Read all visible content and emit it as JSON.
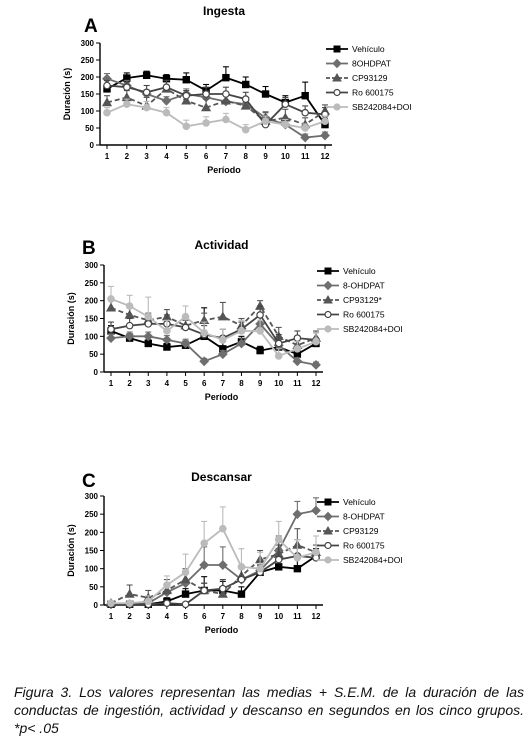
{
  "caption": "Figura 3. Los valores representan las medias + S.E.M. de la duración de las conductas de ingestión, actividad y descanso en segundos en los cinco grupos. *p< .05",
  "chart_data": [
    {
      "type": "line",
      "panel_letter": "A",
      "title": "Ingesta",
      "xlabel": "Período",
      "ylabel": "Duración (s)",
      "ylim": [
        0,
        300
      ],
      "yticks": [
        0,
        50,
        100,
        150,
        200,
        250,
        300
      ],
      "x": [
        1,
        2,
        3,
        4,
        5,
        6,
        7,
        8,
        9,
        10,
        11,
        12
      ],
      "legend_position": "right",
      "series": [
        {
          "name": "Vehículo",
          "marker": "square",
          "color": "#000000",
          "dash": "none",
          "values": [
            165,
            197,
            205,
            195,
            192,
            160,
            198,
            178,
            150,
            125,
            145,
            60
          ],
          "errors": [
            15,
            15,
            12,
            12,
            20,
            18,
            32,
            22,
            22,
            20,
            40,
            18
          ]
        },
        {
          "name": "8OHDPAT",
          "marker": "diamond",
          "color": "#6e6e6e",
          "dash": "none",
          "values": [
            195,
            175,
            150,
            130,
            150,
            140,
            128,
            120,
            80,
            60,
            22,
            28
          ],
          "errors": [
            15,
            15,
            12,
            12,
            15,
            18,
            18,
            15,
            18,
            15,
            10,
            10
          ]
        },
        {
          "name": "CP93129",
          "marker": "triangle",
          "color": "#555555",
          "dash": "dash",
          "values": [
            125,
            140,
            115,
            165,
            130,
            110,
            130,
            115,
            70,
            80,
            60,
            100
          ],
          "errors": [
            20,
            20,
            25,
            25,
            20,
            25,
            20,
            25,
            25,
            25,
            20,
            18
          ]
        },
        {
          "name": "Ro 600175",
          "marker": "circle",
          "color": "#444444",
          "dash": "none",
          "values": [
            175,
            170,
            155,
            170,
            145,
            150,
            150,
            135,
            60,
            120,
            95,
            90
          ],
          "errors": [
            15,
            15,
            20,
            20,
            15,
            20,
            20,
            20,
            15,
            20,
            20,
            20
          ]
        },
        {
          "name": "SB242084+DOI",
          "marker": "circle",
          "color": "#bbbbbb",
          "dash": "none",
          "values": [
            95,
            120,
            110,
            95,
            55,
            65,
            75,
            45,
            70,
            60,
            50,
            70
          ],
          "errors": [
            15,
            15,
            18,
            15,
            18,
            18,
            18,
            15,
            15,
            15,
            12,
            15
          ]
        }
      ]
    },
    {
      "type": "line",
      "panel_letter": "B",
      "title": "Actividad",
      "xlabel": "Período",
      "ylabel": "Duración (s)",
      "ylim": [
        0,
        300
      ],
      "yticks": [
        0,
        50,
        100,
        150,
        200,
        250,
        300
      ],
      "x": [
        1,
        2,
        3,
        4,
        5,
        6,
        7,
        8,
        9,
        10,
        11,
        12
      ],
      "legend_position": "right",
      "series": [
        {
          "name": "Vehículo",
          "marker": "square",
          "color": "#000000",
          "dash": "none",
          "values": [
            115,
            95,
            80,
            70,
            75,
            100,
            65,
            85,
            60,
            70,
            50,
            80
          ],
          "errors": [
            15,
            12,
            10,
            10,
            12,
            80,
            20,
            15,
            12,
            15,
            12,
            15
          ]
        },
        {
          "name": "8-OHDPAT",
          "marker": "diamond",
          "color": "#6e6e6e",
          "dash": "none",
          "values": [
            95,
            100,
            100,
            90,
            80,
            30,
            50,
            80,
            135,
            75,
            30,
            20
          ],
          "errors": [
            12,
            12,
            12,
            12,
            12,
            8,
            10,
            15,
            20,
            15,
            10,
            8
          ]
        },
        {
          "name": "CP93129*",
          "marker": "triangle",
          "color": "#555555",
          "dash": "dash",
          "values": [
            180,
            160,
            145,
            155,
            130,
            145,
            155,
            130,
            185,
            100,
            75,
            95
          ],
          "errors": [
            20,
            20,
            20,
            20,
            20,
            20,
            40,
            20,
            15,
            25,
            20,
            20
          ]
        },
        {
          "name": "Ro 600175",
          "marker": "circle",
          "color": "#444444",
          "dash": "none",
          "values": [
            120,
            130,
            135,
            135,
            125,
            105,
            95,
            120,
            160,
            80,
            95,
            90
          ],
          "errors": [
            20,
            20,
            20,
            25,
            20,
            25,
            25,
            20,
            25,
            25,
            20,
            20
          ]
        },
        {
          "name": "SB242084+DOI",
          "marker": "circle",
          "color": "#bbbbbb",
          "dash": "none",
          "values": [
            205,
            185,
            155,
            115,
            155,
            110,
            90,
            115,
            115,
            45,
            65,
            85
          ],
          "errors": [
            35,
            30,
            55,
            30,
            30,
            30,
            30,
            30,
            30,
            20,
            20,
            25
          ]
        }
      ]
    },
    {
      "type": "line",
      "panel_letter": "C",
      "title": "Descansar",
      "xlabel": "Período",
      "ylabel": "Duración (s)",
      "ylim": [
        0,
        300
      ],
      "yticks": [
        0,
        50,
        100,
        150,
        200,
        250,
        300
      ],
      "x": [
        1,
        2,
        3,
        4,
        5,
        6,
        7,
        8,
        9,
        10,
        11,
        12
      ],
      "legend_position": "right",
      "series": [
        {
          "name": "Vehículo",
          "marker": "square",
          "color": "#000000",
          "dash": "none",
          "values": [
            2,
            2,
            2,
            10,
            30,
            40,
            40,
            30,
            90,
            105,
            100,
            135
          ],
          "errors": [
            2,
            2,
            5,
            10,
            15,
            38,
            25,
            20,
            20,
            50,
            40,
            20
          ]
        },
        {
          "name": "8-OHDPAT",
          "marker": "diamond",
          "color": "#6e6e6e",
          "dash": "none",
          "values": [
            2,
            2,
            5,
            35,
            60,
            110,
            110,
            70,
            95,
            150,
            250,
            260
          ],
          "errors": [
            2,
            5,
            10,
            20,
            30,
            50,
            50,
            30,
            30,
            40,
            35,
            35
          ]
        },
        {
          "name": "CP93129",
          "marker": "triangle",
          "color": "#555555",
          "dash": "dash",
          "values": [
            5,
            30,
            20,
            40,
            70,
            40,
            30,
            80,
            125,
            140,
            165,
            145
          ],
          "errors": [
            5,
            25,
            20,
            30,
            30,
            20,
            15,
            25,
            25,
            45,
            45,
            20
          ]
        },
        {
          "name": "Ro 600175",
          "marker": "circle",
          "color": "#444444",
          "dash": "none",
          "values": [
            2,
            2,
            2,
            5,
            2,
            40,
            45,
            70,
            90,
            125,
            135,
            130
          ],
          "errors": [
            2,
            2,
            2,
            5,
            2,
            20,
            25,
            30,
            30,
            40,
            45,
            20
          ]
        },
        {
          "name": "SB242084+DOI",
          "marker": "circle",
          "color": "#bbbbbb",
          "dash": "none",
          "values": [
            5,
            5,
            10,
            55,
            90,
            170,
            210,
            105,
            100,
            180,
            130,
            145
          ],
          "errors": [
            5,
            5,
            15,
            25,
            50,
            60,
            60,
            50,
            45,
            50,
            50,
            45
          ]
        }
      ]
    }
  ]
}
